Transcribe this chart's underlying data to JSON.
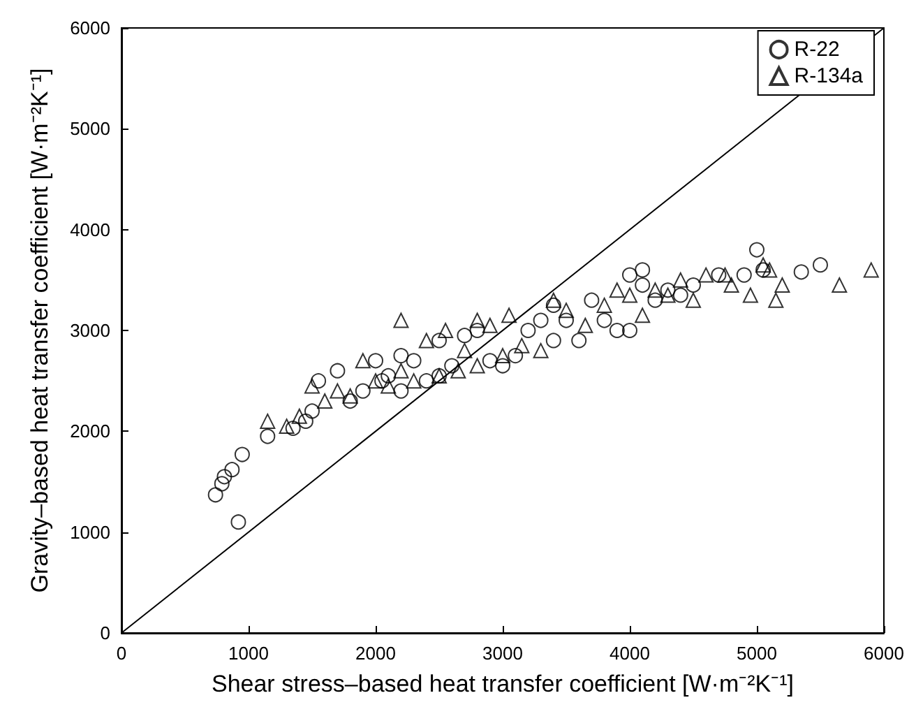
{
  "chart_data": {
    "type": "scatter",
    "xlabel": "Shear stress–based heat transfer coefficient [W·m⁻²K⁻¹]",
    "ylabel": "Gravity–based heat transfer coefficient [W·m⁻²K⁻¹]",
    "xlim": [
      0,
      6000
    ],
    "xticks": [
      0,
      1000,
      2000,
      3000,
      4000,
      5000,
      6000
    ],
    "ylim": [
      0,
      6000
    ],
    "yticks": [
      0,
      1000,
      2000,
      3000,
      4000,
      5000,
      6000
    ],
    "grid": false,
    "legend": "top right",
    "series": [
      {
        "name": "R-22",
        "color": "#000000",
        "marker": "circle",
        "x": [
          740,
          790,
          810,
          870,
          950,
          920,
          1150,
          1350,
          1450,
          1500,
          1550,
          1700,
          1800,
          1900,
          2000,
          2050,
          2100,
          2200,
          2300,
          2400,
          2500,
          2600,
          2700,
          2800,
          2900,
          3000,
          3100,
          3200,
          3300,
          3400,
          3500,
          3600,
          3700,
          3800,
          3900,
          4000,
          4000,
          4100,
          4100,
          4200,
          4300,
          4400,
          4500,
          4700,
          4900,
          5000,
          5050,
          5350,
          5500,
          3400,
          2200,
          2500
        ],
        "values": [
          1370,
          1480,
          1550,
          1620,
          1770,
          1100,
          1950,
          2030,
          2100,
          2200,
          2500,
          2600,
          2300,
          2400,
          2700,
          2500,
          2550,
          2400,
          2700,
          2500,
          2900,
          2650,
          2950,
          3000,
          2700,
          2650,
          2750,
          3000,
          3100,
          2900,
          3100,
          2900,
          3300,
          3100,
          3000,
          3000,
          3550,
          3600,
          3450,
          3300,
          3400,
          3350,
          3450,
          3550,
          3550,
          3800,
          3600,
          3580,
          3650,
          3250,
          2750,
          2550
        ]
      },
      {
        "name": "R-134a",
        "color": "#000000",
        "marker": "triangle",
        "x": [
          1150,
          1300,
          1400,
          1500,
          1600,
          1700,
          1800,
          1900,
          2000,
          2100,
          2200,
          2300,
          2400,
          2500,
          2550,
          2650,
          2700,
          2800,
          2900,
          3000,
          3050,
          3150,
          3300,
          3400,
          3500,
          3650,
          3800,
          3900,
          4000,
          4100,
          4200,
          4300,
          4400,
          4500,
          4600,
          4750,
          4800,
          4950,
          5050,
          5100,
          5200,
          5150,
          5650,
          5900,
          2200,
          2800
        ],
        "values": [
          2100,
          2050,
          2150,
          2450,
          2300,
          2400,
          2350,
          2700,
          2500,
          2450,
          2600,
          2500,
          2900,
          2550,
          3000,
          2600,
          2800,
          2650,
          3050,
          2750,
          3150,
          2850,
          2800,
          3300,
          3200,
          3050,
          3250,
          3400,
          3350,
          3150,
          3400,
          3350,
          3500,
          3300,
          3550,
          3550,
          3450,
          3350,
          3650,
          3600,
          3450,
          3300,
          3450,
          3600,
          3100,
          3100
        ]
      },
      {
        "type": "line",
        "color": "#000000",
        "line_style": "solid",
        "marker": "none",
        "x": [
          0,
          6000
        ],
        "values": [
          0,
          6000
        ]
      }
    ]
  }
}
